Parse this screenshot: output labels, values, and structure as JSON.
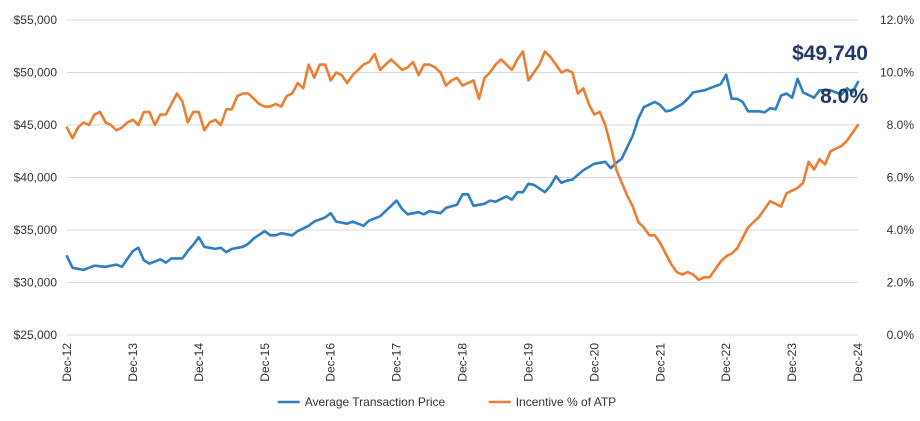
{
  "chart_data": {
    "type": "line",
    "title": "",
    "xlabel": "",
    "ylabel_left": "",
    "ylabel_right": "",
    "grid": "horizontal",
    "legend_position": "bottom",
    "x_tick_labels": [
      "Dec-12",
      "Dec-13",
      "Dec-14",
      "Dec-15",
      "Dec-16",
      "Dec-17",
      "Dec-18",
      "Dec-19",
      "Dec-20",
      "Dec-21",
      "Dec-22",
      "Dec-23",
      "Dec-24"
    ],
    "y_left": {
      "min": 25000,
      "max": 55000,
      "ticks": [
        25000,
        30000,
        35000,
        40000,
        45000,
        50000,
        55000
      ],
      "tick_labels": [
        "$25,000",
        "$30,000",
        "$35,000",
        "$40,000",
        "$45,000",
        "$50,000",
        "$55,000"
      ]
    },
    "y_right": {
      "min": 0,
      "max": 12,
      "ticks": [
        0,
        2,
        4,
        6,
        8,
        10,
        12
      ],
      "tick_labels": [
        "0.0%",
        "2.0%",
        "4.0%",
        "6.0%",
        "8.0%",
        "10.0%",
        "12.0%"
      ]
    },
    "series": [
      {
        "name": "Average Transaction Price",
        "axis": "left",
        "color": "#2E7EC2",
        "points": [
          [
            "Dec-12",
            32500
          ],
          [
            "Jan-13",
            31400
          ],
          [
            "Mar-13",
            31200
          ],
          [
            "May-13",
            31600
          ],
          [
            "Jul-13",
            31500
          ],
          [
            "Sep-13",
            31700
          ],
          [
            "Oct-13",
            31500
          ],
          [
            "Dec-13",
            33000
          ],
          [
            "Jan-14",
            33300
          ],
          [
            "Feb-14",
            32100
          ],
          [
            "Mar-14",
            31800
          ],
          [
            "May-14",
            32200
          ],
          [
            "Jun-14",
            31900
          ],
          [
            "Jul-14",
            32300
          ],
          [
            "Sep-14",
            32300
          ],
          [
            "Oct-14",
            33000
          ],
          [
            "Nov-14",
            33600
          ],
          [
            "Dec-14",
            34300
          ],
          [
            "Jan-15",
            33400
          ],
          [
            "Mar-15",
            33200
          ],
          [
            "Apr-15",
            33300
          ],
          [
            "May-15",
            32900
          ],
          [
            "Jun-15",
            33200
          ],
          [
            "Aug-15",
            33400
          ],
          [
            "Sep-15",
            33700
          ],
          [
            "Oct-15",
            34200
          ],
          [
            "Dec-15",
            34900
          ],
          [
            "Jan-16",
            34500
          ],
          [
            "Feb-16",
            34500
          ],
          [
            "Mar-16",
            34700
          ],
          [
            "May-16",
            34500
          ],
          [
            "Jun-16",
            34900
          ],
          [
            "Aug-16",
            35400
          ],
          [
            "Sep-16",
            35800
          ],
          [
            "Nov-16",
            36200
          ],
          [
            "Dec-16",
            36600
          ],
          [
            "Jan-17",
            35800
          ],
          [
            "Mar-17",
            35600
          ],
          [
            "Apr-17",
            35800
          ],
          [
            "Jun-17",
            35400
          ],
          [
            "Jul-17",
            35900
          ],
          [
            "Sep-17",
            36300
          ],
          [
            "Oct-17",
            36800
          ],
          [
            "Dec-17",
            37800
          ],
          [
            "Jan-18",
            37000
          ],
          [
            "Feb-18",
            36500
          ],
          [
            "Apr-18",
            36700
          ],
          [
            "May-18",
            36500
          ],
          [
            "Jun-18",
            36800
          ],
          [
            "Aug-18",
            36600
          ],
          [
            "Sep-18",
            37100
          ],
          [
            "Nov-18",
            37400
          ],
          [
            "Dec-18",
            38400
          ],
          [
            "Jan-19",
            38400
          ],
          [
            "Feb-19",
            37300
          ],
          [
            "Apr-19",
            37500
          ],
          [
            "May-19",
            37800
          ],
          [
            "Jun-19",
            37700
          ],
          [
            "Aug-19",
            38200
          ],
          [
            "Sep-19",
            37900
          ],
          [
            "Oct-19",
            38600
          ],
          [
            "Nov-19",
            38600
          ],
          [
            "Dec-19",
            39400
          ],
          [
            "Jan-20",
            39300
          ],
          [
            "Mar-20",
            38600
          ],
          [
            "Apr-20",
            39200
          ],
          [
            "May-20",
            40100
          ],
          [
            "Jun-20",
            39500
          ],
          [
            "Jul-20",
            39700
          ],
          [
            "Aug-20",
            39800
          ],
          [
            "Oct-20",
            40700
          ],
          [
            "Dec-20",
            41300
          ],
          [
            "Jan-21",
            41400
          ],
          [
            "Feb-21",
            41500
          ],
          [
            "Mar-21",
            40900
          ],
          [
            "Apr-21",
            41400
          ],
          [
            "May-21",
            41800
          ],
          [
            "Jul-21",
            44000
          ],
          [
            "Aug-21",
            45600
          ],
          [
            "Sep-21",
            46700
          ],
          [
            "Nov-21",
            47200
          ],
          [
            "Dec-21",
            46900
          ],
          [
            "Jan-22",
            46300
          ],
          [
            "Feb-22",
            46400
          ],
          [
            "Apr-22",
            47000
          ],
          [
            "May-22",
            47500
          ],
          [
            "Jun-22",
            48100
          ],
          [
            "Aug-22",
            48300
          ],
          [
            "Sep-22",
            48500
          ],
          [
            "Nov-22",
            48900
          ],
          [
            "Dec-22",
            49800
          ],
          [
            "Jan-23",
            47500
          ],
          [
            "Feb-23",
            47500
          ],
          [
            "Mar-23",
            47200
          ],
          [
            "Apr-23",
            46300
          ],
          [
            "Jun-23",
            46300
          ],
          [
            "Jul-23",
            46200
          ],
          [
            "Aug-23",
            46600
          ],
          [
            "Sep-23",
            46500
          ],
          [
            "Oct-23",
            47800
          ],
          [
            "Nov-23",
            48000
          ],
          [
            "Dec-23",
            47600
          ],
          [
            "Jan-24",
            49400
          ],
          [
            "Feb-24",
            48100
          ],
          [
            "Apr-24",
            47600
          ],
          [
            "May-24",
            48300
          ],
          [
            "Jul-24",
            48300
          ],
          [
            "Sep-24",
            47900
          ],
          [
            "Oct-24",
            48500
          ],
          [
            "Nov-24",
            48100
          ],
          [
            "Dec-24",
            49100
          ]
        ]
      },
      {
        "name": "Incentive % of ATP",
        "axis": "right",
        "color": "#ED7D31",
        "points": [
          [
            "Dec-12",
            7.9
          ],
          [
            "Jan-13",
            7.5
          ],
          [
            "Feb-13",
            7.9
          ],
          [
            "Mar-13",
            8.1
          ],
          [
            "Apr-13",
            8.0
          ],
          [
            "May-13",
            8.4
          ],
          [
            "Jun-13",
            8.5
          ],
          [
            "Jul-13",
            8.1
          ],
          [
            "Aug-13",
            8.0
          ],
          [
            "Sep-13",
            7.8
          ],
          [
            "Oct-13",
            7.9
          ],
          [
            "Nov-13",
            8.1
          ],
          [
            "Dec-13",
            8.2
          ],
          [
            "Jan-14",
            8.0
          ],
          [
            "Feb-14",
            8.5
          ],
          [
            "Mar-14",
            8.5
          ],
          [
            "Apr-14",
            8.0
          ],
          [
            "May-14",
            8.4
          ],
          [
            "Jun-14",
            8.4
          ],
          [
            "Jul-14",
            8.8
          ],
          [
            "Aug-14",
            9.2
          ],
          [
            "Sep-14",
            8.9
          ],
          [
            "Oct-14",
            8.1
          ],
          [
            "Nov-14",
            8.5
          ],
          [
            "Dec-14",
            8.5
          ],
          [
            "Jan-15",
            7.8
          ],
          [
            "Feb-15",
            8.1
          ],
          [
            "Mar-15",
            8.2
          ],
          [
            "Apr-15",
            8.0
          ],
          [
            "May-15",
            8.6
          ],
          [
            "Jun-15",
            8.6
          ],
          [
            "Jul-15",
            9.1
          ],
          [
            "Aug-15",
            9.2
          ],
          [
            "Sep-15",
            9.2
          ],
          [
            "Oct-15",
            9.0
          ],
          [
            "Nov-15",
            8.8
          ],
          [
            "Dec-15",
            8.7
          ],
          [
            "Jan-16",
            8.7
          ],
          [
            "Feb-16",
            8.8
          ],
          [
            "Mar-16",
            8.7
          ],
          [
            "Apr-16",
            9.1
          ],
          [
            "May-16",
            9.2
          ],
          [
            "Jun-16",
            9.6
          ],
          [
            "Jul-16",
            9.4
          ],
          [
            "Aug-16",
            10.3
          ],
          [
            "Sep-16",
            9.8
          ],
          [
            "Oct-16",
            10.3
          ],
          [
            "Nov-16",
            10.3
          ],
          [
            "Dec-16",
            9.7
          ],
          [
            "Jan-17",
            10.0
          ],
          [
            "Feb-17",
            9.9
          ],
          [
            "Mar-17",
            9.6
          ],
          [
            "Apr-17",
            9.9
          ],
          [
            "May-17",
            10.1
          ],
          [
            "Jun-17",
            10.3
          ],
          [
            "Jul-17",
            10.4
          ],
          [
            "Aug-17",
            10.7
          ],
          [
            "Sep-17",
            10.1
          ],
          [
            "Oct-17",
            10.3
          ],
          [
            "Nov-17",
            10.5
          ],
          [
            "Dec-17",
            10.3
          ],
          [
            "Jan-18",
            10.1
          ],
          [
            "Feb-18",
            10.2
          ],
          [
            "Mar-18",
            10.4
          ],
          [
            "Apr-18",
            9.9
          ],
          [
            "May-18",
            10.3
          ],
          [
            "Jun-18",
            10.3
          ],
          [
            "Jul-18",
            10.2
          ],
          [
            "Aug-18",
            10.0
          ],
          [
            "Sep-18",
            9.5
          ],
          [
            "Oct-18",
            9.7
          ],
          [
            "Nov-18",
            9.8
          ],
          [
            "Dec-18",
            9.5
          ],
          [
            "Jan-19",
            9.6
          ],
          [
            "Feb-19",
            9.7
          ],
          [
            "Mar-19",
            9.0
          ],
          [
            "Apr-19",
            9.8
          ],
          [
            "May-19",
            10.0
          ],
          [
            "Jun-19",
            10.3
          ],
          [
            "Jul-19",
            10.5
          ],
          [
            "Aug-19",
            10.3
          ],
          [
            "Sep-19",
            10.1
          ],
          [
            "Oct-19",
            10.5
          ],
          [
            "Nov-19",
            10.8
          ],
          [
            "Dec-19",
            9.7
          ],
          [
            "Jan-20",
            10.0
          ],
          [
            "Feb-20",
            10.3
          ],
          [
            "Mar-20",
            10.8
          ],
          [
            "Apr-20",
            10.6
          ],
          [
            "May-20",
            10.3
          ],
          [
            "Jun-20",
            10.0
          ],
          [
            "Jul-20",
            10.1
          ],
          [
            "Aug-20",
            10.0
          ],
          [
            "Sep-20",
            9.2
          ],
          [
            "Oct-20",
            9.4
          ],
          [
            "Nov-20",
            8.8
          ],
          [
            "Dec-20",
            8.4
          ],
          [
            "Jan-21",
            8.5
          ],
          [
            "Feb-21",
            8.0
          ],
          [
            "Mar-21",
            7.2
          ],
          [
            "Apr-21",
            6.3
          ],
          [
            "May-21",
            5.8
          ],
          [
            "Jun-21",
            5.3
          ],
          [
            "Jul-21",
            4.9
          ],
          [
            "Aug-21",
            4.3
          ],
          [
            "Sep-21",
            4.1
          ],
          [
            "Oct-21",
            3.8
          ],
          [
            "Nov-21",
            3.8
          ],
          [
            "Dec-21",
            3.5
          ],
          [
            "Jan-22",
            3.1
          ],
          [
            "Feb-22",
            2.7
          ],
          [
            "Mar-22",
            2.4
          ],
          [
            "Apr-22",
            2.3
          ],
          [
            "May-22",
            2.4
          ],
          [
            "Jun-22",
            2.3
          ],
          [
            "Jul-22",
            2.1
          ],
          [
            "Aug-22",
            2.2
          ],
          [
            "Sep-22",
            2.2
          ],
          [
            "Oct-22",
            2.5
          ],
          [
            "Nov-22",
            2.8
          ],
          [
            "Dec-22",
            3.0
          ],
          [
            "Jan-23",
            3.1
          ],
          [
            "Feb-23",
            3.3
          ],
          [
            "Mar-23",
            3.7
          ],
          [
            "Apr-23",
            4.1
          ],
          [
            "May-23",
            4.3
          ],
          [
            "Jun-23",
            4.5
          ],
          [
            "Jul-23",
            4.8
          ],
          [
            "Aug-23",
            5.1
          ],
          [
            "Sep-23",
            5.0
          ],
          [
            "Oct-23",
            4.9
          ],
          [
            "Nov-23",
            5.4
          ],
          [
            "Dec-23",
            5.5
          ],
          [
            "Jan-24",
            5.6
          ],
          [
            "Feb-24",
            5.8
          ],
          [
            "Mar-24",
            6.6
          ],
          [
            "Apr-24",
            6.3
          ],
          [
            "May-24",
            6.7
          ],
          [
            "Jun-24",
            6.5
          ],
          [
            "Jul-24",
            7.0
          ],
          [
            "Aug-24",
            7.1
          ],
          [
            "Sep-24",
            7.2
          ],
          [
            "Oct-24",
            7.4
          ],
          [
            "Nov-24",
            7.7
          ],
          [
            "Dec-24",
            8.0
          ]
        ]
      }
    ],
    "annotations": [
      {
        "text": "$49,740",
        "series": "Average Transaction Price",
        "color": "#1F3864"
      },
      {
        "text": "8.0%",
        "series": "Incentive % of ATP",
        "color": "#1F3864"
      }
    ]
  }
}
